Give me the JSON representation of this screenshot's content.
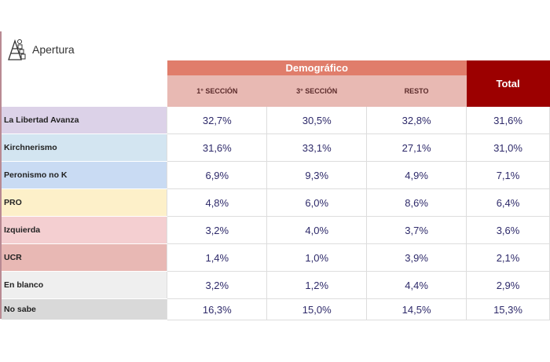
{
  "brand": {
    "name": "Apertura"
  },
  "header": {
    "group": "Demográfico",
    "columns": [
      "1° SECCIÓN",
      "3° SECCIÓN",
      "RESTO"
    ],
    "total": "Total"
  },
  "rows": [
    {
      "label": "La Libertad Avanza",
      "color": "#dcd2e8",
      "values": [
        "32,7%",
        "30,5%",
        "32,8%",
        "31,6%"
      ]
    },
    {
      "label": "Kirchnerismo",
      "color": "#d3e5f1",
      "values": [
        "31,6%",
        "33,1%",
        "27,1%",
        "31,0%"
      ]
    },
    {
      "label": "Peronismo no K",
      "color": "#c9dbf3",
      "values": [
        "6,9%",
        "9,3%",
        "4,9%",
        "7,1%"
      ]
    },
    {
      "label": "PRO",
      "color": "#fdf0c9",
      "values": [
        "4,8%",
        "6,0%",
        "8,6%",
        "6,4%"
      ]
    },
    {
      "label": "Izquierda",
      "color": "#f4cfd1",
      "values": [
        "3,2%",
        "4,0%",
        "3,7%",
        "3,6%"
      ]
    },
    {
      "label": "UCR",
      "color": "#e8b8b4",
      "values": [
        "1,4%",
        "1,0%",
        "3,9%",
        "2,1%"
      ]
    },
    {
      "label": "En blanco",
      "color": "#efefef",
      "values": [
        "3,2%",
        "1,2%",
        "4,4%",
        "2,9%"
      ]
    },
    {
      "label": "No sabe",
      "color": "#d9d9d9",
      "values": [
        "16,3%",
        "15,0%",
        "14,5%",
        "15,3%"
      ]
    }
  ]
}
